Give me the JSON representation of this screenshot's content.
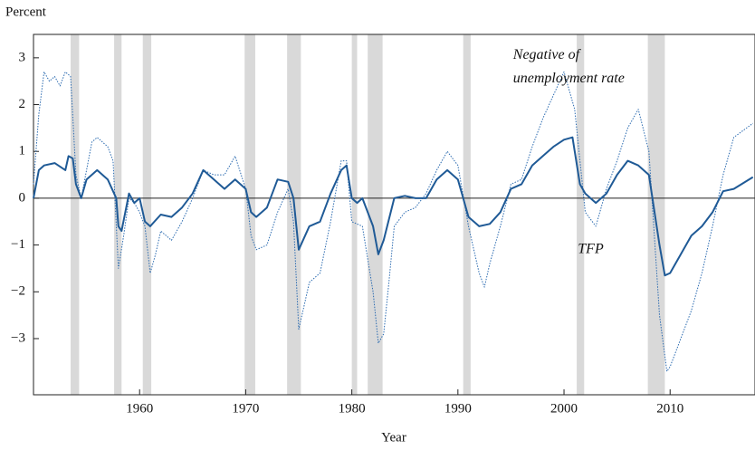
{
  "chart_data": {
    "type": "line",
    "y_axis_label": "Percent",
    "x_axis_label": "Year",
    "xlim": [
      1950,
      2018
    ],
    "xticks": [
      1960,
      1970,
      1980,
      1990,
      2000,
      2010
    ],
    "ylim": [
      -4.2,
      3.5
    ],
    "yticks": [
      {
        "value": -3,
        "label": "−3"
      },
      {
        "value": -2,
        "label": "−2"
      },
      {
        "value": -1,
        "label": "−1"
      },
      0,
      1,
      2,
      3
    ],
    "zero_line": true,
    "recession_color": "#d9d9d9",
    "recessions": [
      [
        1953.5,
        1954.3
      ],
      [
        1957.6,
        1958.3
      ],
      [
        1960.3,
        1961.1
      ],
      [
        1969.9,
        1970.9
      ],
      [
        1973.9,
        1975.2
      ],
      [
        1980.0,
        1980.5
      ],
      [
        1981.5,
        1982.9
      ],
      [
        1990.5,
        1991.2
      ],
      [
        2001.2,
        2001.9
      ],
      [
        2007.9,
        2009.5
      ]
    ],
    "annotations": [
      {
        "text": "Negative of",
        "x": 1995.2,
        "y": 3.05
      },
      {
        "text": "unemployment rate",
        "x": 1995.2,
        "y": 2.55
      },
      {
        "text": "TFP",
        "x": 2001.3,
        "y": -1.1
      }
    ],
    "series": [
      {
        "name": "Negative of unemployment rate",
        "color": "#2a6ab0",
        "dash": true,
        "width": 1,
        "x": [
          1950,
          1950.5,
          1951,
          1951.5,
          1952,
          1952.5,
          1953,
          1953.5,
          1954,
          1954.5,
          1955,
          1955.5,
          1956,
          1956.5,
          1957,
          1957.5,
          1958,
          1958.5,
          1959,
          1959.5,
          1960,
          1960.5,
          1961,
          1961.5,
          1962,
          1963,
          1964,
          1965,
          1966,
          1967,
          1968,
          1969,
          1970,
          1970.5,
          1971,
          1972,
          1973,
          1974,
          1974.5,
          1975,
          1975.5,
          1976,
          1977,
          1978,
          1979,
          1979.5,
          1980,
          1981,
          1982,
          1982.5,
          1983,
          1983.5,
          1984,
          1985,
          1986,
          1987,
          1988,
          1989,
          1990,
          1991,
          1992,
          1992.5,
          1993,
          1994,
          1995,
          1996,
          1997,
          1998,
          1999,
          2000,
          2001,
          2002,
          2003,
          2004,
          2005,
          2006,
          2007,
          2008,
          2009,
          2009.7,
          2010,
          2011,
          2012,
          2013,
          2014,
          2015,
          2016,
          2017.8
        ],
        "values": [
          0.3,
          1.8,
          2.7,
          2.5,
          2.6,
          2.4,
          2.7,
          2.6,
          0.5,
          0.0,
          0.6,
          1.2,
          1.3,
          1.2,
          1.1,
          0.8,
          -1.5,
          -0.8,
          0.0,
          -0.1,
          -0.3,
          -0.6,
          -1.6,
          -1.2,
          -0.7,
          -0.9,
          -0.5,
          0.0,
          0.6,
          0.5,
          0.5,
          0.9,
          0.2,
          -0.8,
          -1.1,
          -1.0,
          -0.3,
          0.2,
          -0.5,
          -2.8,
          -2.3,
          -1.8,
          -1.6,
          -0.5,
          0.8,
          0.8,
          -0.5,
          -0.6,
          -2.0,
          -3.1,
          -2.9,
          -1.8,
          -0.6,
          -0.3,
          -0.2,
          0.1,
          0.6,
          1.0,
          0.7,
          -0.6,
          -1.6,
          -1.9,
          -1.4,
          -0.6,
          0.3,
          0.4,
          1.1,
          1.7,
          2.2,
          2.7,
          1.9,
          -0.3,
          -0.6,
          0.2,
          0.8,
          1.5,
          1.9,
          1.0,
          -2.5,
          -3.7,
          -3.6,
          -3.0,
          -2.4,
          -1.6,
          -0.6,
          0.5,
          1.3,
          1.6
        ]
      },
      {
        "name": "TFP",
        "color": "#1f5a96",
        "dash": false,
        "width": 2,
        "x": [
          1950,
          1950.5,
          1951,
          1952,
          1953,
          1953.3,
          1953.7,
          1954,
          1954.5,
          1955,
          1956,
          1957,
          1957.8,
          1958,
          1958.3,
          1959,
          1959.5,
          1960,
          1960.5,
          1961,
          1962,
          1963,
          1964,
          1965,
          1966,
          1967,
          1968,
          1969,
          1970,
          1970.5,
          1971,
          1972,
          1973,
          1974,
          1974.5,
          1975,
          1976,
          1977,
          1978,
          1979,
          1979.5,
          1980,
          1980.5,
          1981,
          1982,
          1982.5,
          1983,
          1984,
          1985,
          1986,
          1987,
          1988,
          1989,
          1990,
          1991,
          1992,
          1993,
          1994,
          1995,
          1996,
          1997,
          1998,
          1999,
          2000,
          2000.8,
          2001.5,
          2002,
          2003,
          2004,
          2005,
          2006,
          2007,
          2008,
          2009,
          2009.5,
          2010,
          2011,
          2012,
          2013,
          2014,
          2015,
          2016,
          2017.8
        ],
        "values": [
          0.0,
          0.6,
          0.7,
          0.75,
          0.6,
          0.9,
          0.85,
          0.3,
          0.0,
          0.4,
          0.6,
          0.4,
          0.0,
          -0.6,
          -0.7,
          0.1,
          -0.1,
          0.0,
          -0.5,
          -0.6,
          -0.35,
          -0.4,
          -0.2,
          0.1,
          0.6,
          0.4,
          0.2,
          0.4,
          0.2,
          -0.3,
          -0.4,
          -0.2,
          0.4,
          0.35,
          0.0,
          -1.1,
          -0.6,
          -0.5,
          0.1,
          0.6,
          0.7,
          0.0,
          -0.1,
          0.0,
          -0.6,
          -1.2,
          -0.9,
          0.0,
          0.05,
          0.0,
          0.0,
          0.4,
          0.6,
          0.4,
          -0.4,
          -0.6,
          -0.55,
          -0.3,
          0.2,
          0.3,
          0.7,
          0.9,
          1.1,
          1.25,
          1.3,
          0.3,
          0.1,
          -0.1,
          0.1,
          0.5,
          0.8,
          0.7,
          0.5,
          -1.0,
          -1.65,
          -1.6,
          -1.2,
          -0.8,
          -0.6,
          -0.3,
          0.15,
          0.2,
          0.45
        ]
      }
    ]
  }
}
